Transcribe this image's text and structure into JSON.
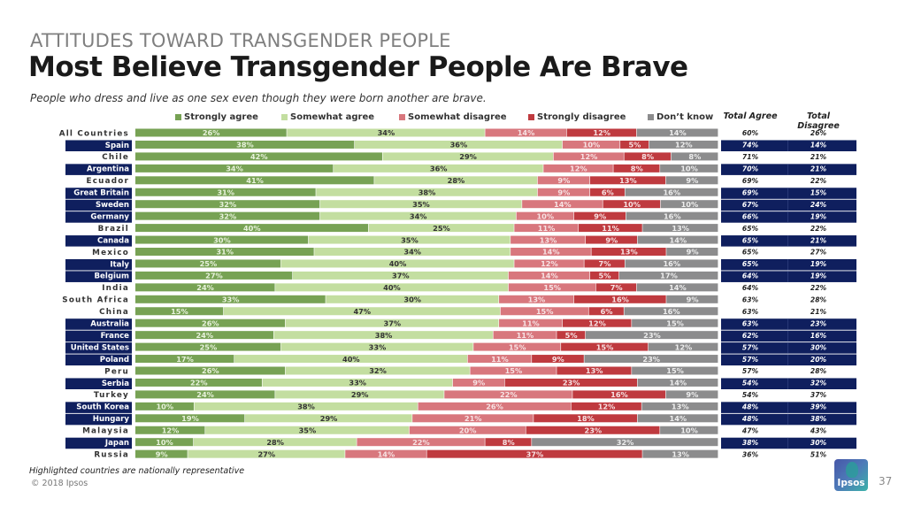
{
  "header": {
    "kicker": "ATTITUDES TOWARD TRANSGENDER PEOPLE",
    "title": "Most Believe Transgender People Are Brave",
    "subtitle": "People who dress and live as one sex even though they were born another are brave."
  },
  "table_headers": {
    "total_agree": "Total Agree",
    "total_disagree": "Total Disagree"
  },
  "colors": {
    "strongly_agree": "#77a254",
    "somewhat_agree": "#c3dea0",
    "somewhat_disagree": "#d8777d",
    "strongly_disagree": "#bf3a3f",
    "dont_know": "#8c8c8d",
    "highlight": "#0f1f5e"
  },
  "chart_data": {
    "type": "bar",
    "orientation": "horizontal-stacked-100",
    "title": "Most Believe Transgender People Are Brave",
    "subtitle": "People who dress and live as one sex even though they were born another are brave.",
    "xlabel": "",
    "ylabel": "",
    "xlim": [
      0,
      100
    ],
    "grid": false,
    "legend_position": "top",
    "series_names": [
      "Strongly agree",
      "Somewhat agree",
      "Somewhat disagree",
      "Strongly disagree",
      "Don’t know"
    ],
    "rows": [
      {
        "country": "All Countries",
        "highlighted": false,
        "values": [
          26,
          34,
          14,
          12,
          14
        ],
        "total_agree": "60%",
        "total_disagree": "26%"
      },
      {
        "country": "Spain",
        "highlighted": true,
        "values": [
          38,
          36,
          10,
          5,
          12
        ],
        "total_agree": "74%",
        "total_disagree": "14%"
      },
      {
        "country": "Chile",
        "highlighted": false,
        "values": [
          42,
          29,
          12,
          8,
          8
        ],
        "total_agree": "71%",
        "total_disagree": "21%"
      },
      {
        "country": "Argentina",
        "highlighted": true,
        "values": [
          34,
          36,
          12,
          8,
          10
        ],
        "total_agree": "70%",
        "total_disagree": "21%"
      },
      {
        "country": "Ecuador",
        "highlighted": false,
        "values": [
          41,
          28,
          9,
          13,
          9
        ],
        "total_agree": "69%",
        "total_disagree": "22%"
      },
      {
        "country": "Great Britain",
        "highlighted": true,
        "values": [
          31,
          38,
          9,
          6,
          16
        ],
        "total_agree": "69%",
        "total_disagree": "15%"
      },
      {
        "country": "Sweden",
        "highlighted": true,
        "values": [
          32,
          35,
          14,
          10,
          10
        ],
        "total_agree": "67%",
        "total_disagree": "24%"
      },
      {
        "country": "Germany",
        "highlighted": true,
        "values": [
          32,
          34,
          10,
          9,
          16
        ],
        "total_agree": "66%",
        "total_disagree": "19%"
      },
      {
        "country": "Brazil",
        "highlighted": false,
        "values": [
          40,
          25,
          11,
          11,
          13
        ],
        "total_agree": "65%",
        "total_disagree": "22%"
      },
      {
        "country": "Canada",
        "highlighted": true,
        "values": [
          30,
          35,
          13,
          9,
          14
        ],
        "total_agree": "65%",
        "total_disagree": "21%"
      },
      {
        "country": "Mexico",
        "highlighted": false,
        "values": [
          31,
          34,
          14,
          13,
          9
        ],
        "total_agree": "65%",
        "total_disagree": "27%"
      },
      {
        "country": "Italy",
        "highlighted": true,
        "values": [
          25,
          40,
          12,
          7,
          16
        ],
        "total_agree": "65%",
        "total_disagree": "19%"
      },
      {
        "country": "Belgium",
        "highlighted": true,
        "values": [
          27,
          37,
          14,
          5,
          17
        ],
        "total_agree": "64%",
        "total_disagree": "19%"
      },
      {
        "country": "India",
        "highlighted": false,
        "values": [
          24,
          40,
          15,
          7,
          14
        ],
        "total_agree": "64%",
        "total_disagree": "22%"
      },
      {
        "country": "South Africa",
        "highlighted": false,
        "values": [
          33,
          30,
          13,
          16,
          9
        ],
        "total_agree": "63%",
        "total_disagree": "28%"
      },
      {
        "country": "China",
        "highlighted": false,
        "values": [
          15,
          47,
          15,
          6,
          16
        ],
        "total_agree": "63%",
        "total_disagree": "21%"
      },
      {
        "country": "Australia",
        "highlighted": true,
        "values": [
          26,
          37,
          11,
          12,
          15
        ],
        "total_agree": "63%",
        "total_disagree": "23%"
      },
      {
        "country": "France",
        "highlighted": true,
        "values": [
          24,
          38,
          11,
          5,
          23
        ],
        "total_agree": "62%",
        "total_disagree": "16%"
      },
      {
        "country": "United States",
        "highlighted": true,
        "values": [
          25,
          33,
          15,
          15,
          12
        ],
        "total_agree": "57%",
        "total_disagree": "30%"
      },
      {
        "country": "Poland",
        "highlighted": true,
        "values": [
          17,
          40,
          11,
          9,
          23
        ],
        "total_agree": "57%",
        "total_disagree": "20%"
      },
      {
        "country": "Peru",
        "highlighted": false,
        "values": [
          26,
          32,
          15,
          13,
          15
        ],
        "total_agree": "57%",
        "total_disagree": "28%"
      },
      {
        "country": "Serbia",
        "highlighted": true,
        "values": [
          22,
          33,
          9,
          23,
          14
        ],
        "total_agree": "54%",
        "total_disagree": "32%"
      },
      {
        "country": "Turkey",
        "highlighted": false,
        "values": [
          24,
          29,
          22,
          16,
          9
        ],
        "total_agree": "54%",
        "total_disagree": "37%"
      },
      {
        "country": "South Korea",
        "highlighted": true,
        "values": [
          10,
          38,
          26,
          12,
          13
        ],
        "total_agree": "48%",
        "total_disagree": "39%"
      },
      {
        "country": "Hungary",
        "highlighted": true,
        "values": [
          19,
          29,
          21,
          18,
          14
        ],
        "total_agree": "48%",
        "total_disagree": "38%"
      },
      {
        "country": "Malaysia",
        "highlighted": false,
        "values": [
          12,
          35,
          20,
          23,
          10
        ],
        "total_agree": "47%",
        "total_disagree": "43%"
      },
      {
        "country": "Japan",
        "highlighted": true,
        "values": [
          10,
          28,
          22,
          8,
          32
        ],
        "total_agree": "38%",
        "total_disagree": "30%"
      },
      {
        "country": "Russia",
        "highlighted": false,
        "values": [
          9,
          27,
          14,
          37,
          13
        ],
        "total_agree": "36%",
        "total_disagree": "51%"
      }
    ]
  },
  "footer": {
    "note": "Highlighted countries are nationally representative",
    "copyright": "© 2018 Ipsos",
    "logo_text": "Ipsos",
    "page_number": "37"
  }
}
